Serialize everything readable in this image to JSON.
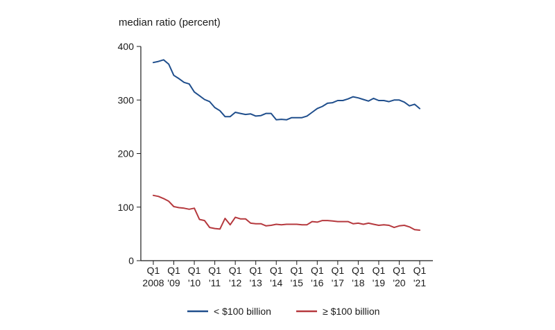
{
  "chart_data": {
    "type": "line",
    "ylabel": "median ratio (percent)",
    "ylim": [
      0,
      400
    ],
    "yticks": [
      0,
      100,
      200,
      300,
      400
    ],
    "xticks": [
      {
        "line1": "Q1",
        "line2": "2008"
      },
      {
        "line1": "Q1",
        "line2": "'09"
      },
      {
        "line1": "Q1",
        "line2": "'10"
      },
      {
        "line1": "Q1",
        "line2": "'11"
      },
      {
        "line1": "Q1",
        "line2": "'12"
      },
      {
        "line1": "Q1",
        "line2": "'13"
      },
      {
        "line1": "Q1",
        "line2": "'14"
      },
      {
        "line1": "Q1",
        "line2": "'15"
      },
      {
        "line1": "Q1",
        "line2": "'16"
      },
      {
        "line1": "Q1",
        "line2": "'17"
      },
      {
        "line1": "Q1",
        "line2": "'18"
      },
      {
        "line1": "Q1",
        "line2": "'19"
      },
      {
        "line1": "Q1",
        "line2": "'20"
      },
      {
        "line1": "Q1",
        "line2": "'21"
      }
    ],
    "x_start": "2008 Q1",
    "x_end": "2021 Q1",
    "grid": false,
    "legend_position": "bottom",
    "series": [
      {
        "name": "< $100 billion",
        "color": "#1f4e8c",
        "values": [
          370,
          372,
          375,
          367,
          346,
          340,
          333,
          330,
          315,
          308,
          301,
          297,
          286,
          280,
          269,
          269,
          277,
          275,
          273,
          274,
          270,
          271,
          275,
          275,
          263,
          264,
          263,
          267,
          267,
          267,
          270,
          277,
          284,
          288,
          294,
          295,
          299,
          299,
          302,
          306,
          304,
          301,
          298,
          303,
          299,
          299,
          297,
          300,
          300,
          296,
          289,
          292,
          284
        ]
      },
      {
        "name": "≥ $100 billion",
        "color": "#b5383d",
        "values": [
          122,
          120,
          116,
          111,
          101,
          99,
          98,
          96,
          98,
          77,
          75,
          62,
          60,
          59,
          79,
          67,
          81,
          78,
          78,
          70,
          69,
          69,
          65,
          66,
          68,
          67,
          68,
          68,
          68,
          67,
          67,
          73,
          72,
          75,
          75,
          74,
          73,
          73,
          73,
          69,
          70,
          68,
          70,
          68,
          66,
          67,
          66,
          62,
          65,
          66,
          63,
          58,
          57
        ]
      }
    ]
  }
}
